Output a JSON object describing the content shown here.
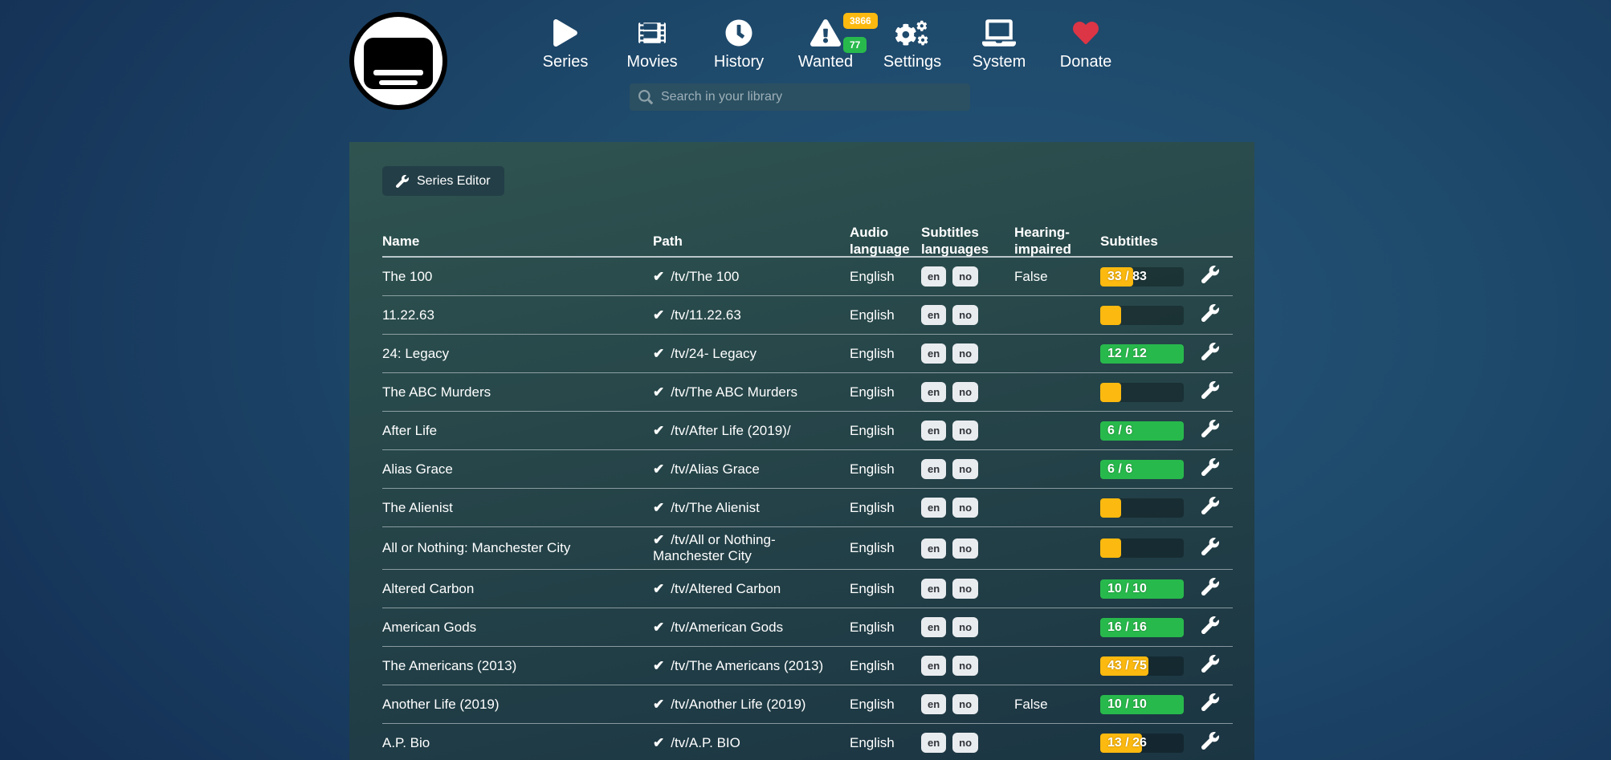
{
  "app": {
    "logo": "bazarr-logo"
  },
  "nav": {
    "items": [
      {
        "label": "Series",
        "icon": "play"
      },
      {
        "label": "Movies",
        "icon": "film"
      },
      {
        "label": "History",
        "icon": "clock"
      },
      {
        "label": "Wanted",
        "icon": "warning",
        "badges": [
          {
            "value": "3866",
            "type": "warning"
          },
          {
            "value": "77",
            "type": "success"
          }
        ]
      },
      {
        "label": "Settings",
        "icon": "gears"
      },
      {
        "label": "System",
        "icon": "laptop"
      },
      {
        "label": "Donate",
        "icon": "heart"
      }
    ]
  },
  "search": {
    "placeholder": "Search in your library"
  },
  "toolbar": {
    "series_editor_label": "Series Editor"
  },
  "colors": {
    "warning": "#fcb90f",
    "success": "#28b94c",
    "heart": "#dc3545",
    "badge_bg": "#e9ecef"
  },
  "table": {
    "headers": {
      "name": "Name",
      "path": "Path",
      "audio": "Audio language",
      "sub_langs": "Subtitles languages",
      "hi": "Hearing-impaired",
      "subtitles": "Subtitles"
    },
    "rows": [
      {
        "name": "The 100",
        "path": "/tv/The 100",
        "audio": "English",
        "langs": [
          "en",
          "no"
        ],
        "hi": "False",
        "progress": {
          "label": "33 / 83",
          "value": 33,
          "total": 83,
          "percent": 39.8,
          "color": "warning"
        }
      },
      {
        "name": "11.22.63",
        "path": "/tv/11.22.63",
        "audio": "English",
        "langs": [
          "en",
          "no"
        ],
        "hi": "",
        "progress": {
          "label": "",
          "percent": 25,
          "color": "warning"
        }
      },
      {
        "name": "24: Legacy",
        "path": "/tv/24- Legacy",
        "audio": "English",
        "langs": [
          "en",
          "no"
        ],
        "hi": "",
        "progress": {
          "label": "12 / 12",
          "value": 12,
          "total": 12,
          "percent": 100,
          "color": "success"
        }
      },
      {
        "name": "The ABC Murders",
        "path": "/tv/The ABC Murders",
        "audio": "English",
        "langs": [
          "en",
          "no"
        ],
        "hi": "",
        "progress": {
          "label": "",
          "percent": 25,
          "color": "warning"
        }
      },
      {
        "name": "After Life",
        "path": "/tv/After Life (2019)/",
        "audio": "English",
        "langs": [
          "en",
          "no"
        ],
        "hi": "",
        "progress": {
          "label": "6 / 6",
          "value": 6,
          "total": 6,
          "percent": 100,
          "color": "success"
        }
      },
      {
        "name": "Alias Grace",
        "path": "/tv/Alias Grace",
        "audio": "English",
        "langs": [
          "en",
          "no"
        ],
        "hi": "",
        "progress": {
          "label": "6 / 6",
          "value": 6,
          "total": 6,
          "percent": 100,
          "color": "success"
        }
      },
      {
        "name": "The Alienist",
        "path": "/tv/The Alienist",
        "audio": "English",
        "langs": [
          "en",
          "no"
        ],
        "hi": "",
        "progress": {
          "label": "",
          "percent": 25,
          "color": "warning"
        }
      },
      {
        "name": "All or Nothing: Manchester City",
        "path": "/tv/All or Nothing- Manchester City",
        "audio": "English",
        "langs": [
          "en",
          "no"
        ],
        "hi": "",
        "progress": {
          "label": "",
          "percent": 25,
          "color": "warning"
        }
      },
      {
        "name": "Altered Carbon",
        "path": "/tv/Altered Carbon",
        "audio": "English",
        "langs": [
          "en",
          "no"
        ],
        "hi": "",
        "progress": {
          "label": "10 / 10",
          "value": 10,
          "total": 10,
          "percent": 100,
          "color": "success"
        }
      },
      {
        "name": "American Gods",
        "path": "/tv/American Gods",
        "audio": "English",
        "langs": [
          "en",
          "no"
        ],
        "hi": "",
        "progress": {
          "label": "16 / 16",
          "value": 16,
          "total": 16,
          "percent": 100,
          "color": "success"
        }
      },
      {
        "name": "The Americans (2013)",
        "path": "/tv/The Americans (2013)",
        "audio": "English",
        "langs": [
          "en",
          "no"
        ],
        "hi": "",
        "progress": {
          "label": "43 / 75",
          "value": 43,
          "total": 75,
          "percent": 57.3,
          "color": "warning"
        }
      },
      {
        "name": "Another Life (2019)",
        "path": "/tv/Another Life (2019)",
        "audio": "English",
        "langs": [
          "en",
          "no"
        ],
        "hi": "False",
        "progress": {
          "label": "10 / 10",
          "value": 10,
          "total": 10,
          "percent": 100,
          "color": "success"
        }
      },
      {
        "name": "A.P. Bio",
        "path": "/tv/A.P. BIO",
        "audio": "English",
        "langs": [
          "en",
          "no"
        ],
        "hi": "",
        "progress": {
          "label": "13 / 26",
          "value": 13,
          "total": 26,
          "percent": 50,
          "color": "warning"
        }
      }
    ]
  }
}
